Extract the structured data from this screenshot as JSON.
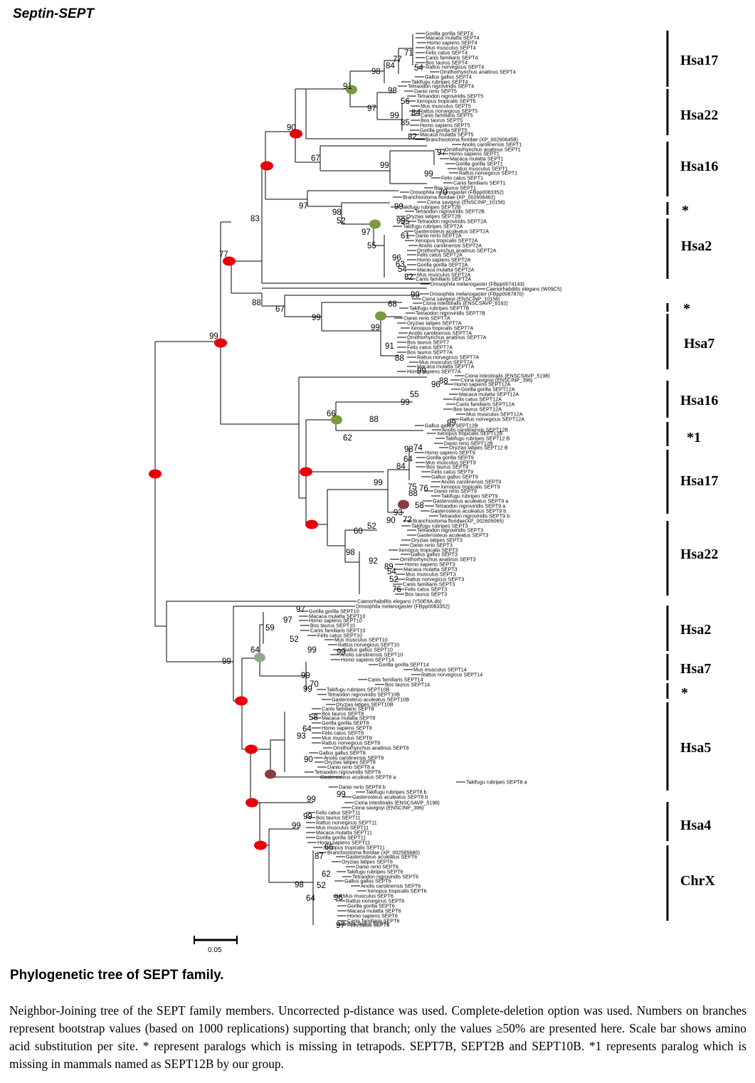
{
  "figure_title": "Septin-SEPT",
  "caption": {
    "heading": "Phylogenetic tree of SEPT family.",
    "body": "Neighbor-Joining tree of the SEPT family members. Uncorrected p-distance was used. Complete-deletion option was used. Numbers on branches represent bootstrap values (based on 1000 replications) supporting that branch; only the values ≥50% are presented here. Scale bar shows amino acid substitution per site. * represent paralogs which is missing in tetrapods. SEPT7B, SEPT2B and SEPT10B. *1 represents paralog which is missing in mammals named as SEPT12B by our group."
  },
  "scale_bar": {
    "label": "0.05"
  },
  "clades": [
    {
      "label": "Hsa17"
    },
    {
      "label": "Hsa22"
    },
    {
      "label": "Hsa16"
    },
    {
      "label": "*"
    },
    {
      "label": "Hsa2"
    },
    {
      "label": "*"
    },
    {
      "label": "Hsa7"
    },
    {
      "label": "Hsa16"
    },
    {
      "label": "*1"
    },
    {
      "label": "Hsa17"
    },
    {
      "label": "Hsa22"
    },
    {
      "label": "Hsa2"
    },
    {
      "label": "Hsa7"
    },
    {
      "label": "*"
    },
    {
      "label": "Hsa5"
    },
    {
      "label": "Hsa4"
    },
    {
      "label": "ChrX"
    }
  ],
  "taxa": [
    "Gorilla gorilla SEPT4",
    "Macaca mulatta SEPT4",
    "Homo sapiens SEPT4",
    "Mus musculus SEPT4",
    "Felis catus SEPT4",
    "Canis familiaris SEPT4",
    "Bos taurus SEPT4",
    "Rattus norvegicus SEPT4",
    "Ornithorhynchus anatinus SEPT4",
    "Gallus gallus SEPT4",
    "Takifugu rubripes SEPT4",
    "Tetraodon nigroviridis SEPT4",
    "Danio rerio SEPT5",
    "Tetraodon nigroviridis SEPT5",
    "Xenopus tropicalis SEPT5",
    "Mus musculus SEPT5",
    "Rattus norvegicus SEPT5",
    "Canis familiaris SEPT5",
    "Bos taurus SEPT5",
    "Homo sapiens SEPT5",
    "Gorilla gorilla SEPT5",
    "Macaca mulatta SEPT5",
    "Branchiostoma floridae (XP_002606458)",
    "Anolis carolinensis SEPT1",
    "Ornithorhynchus anatinus SEPT1",
    "Homo sapiens SEPT1",
    "Macaca mulatta SEPT1",
    "Gorilla gorilla SEPT1",
    "Mus musculus SEPT1",
    "Rattus norvegicus SEPT1",
    "Felis catus SEPT1",
    "Canis familiaris SEPT1",
    "Bos taurus SEPT1",
    "Drosophila melanogaster (FBpp0083352)",
    "Branchiostoma floridae (XP_002606462)",
    "Ciona savignyi (ENSCINP_10156)",
    "Takifugu rubripes SEPT2B",
    "Tetraodon nigroviridis SEPT2B",
    "Oryzias latipes SEPT2B",
    "Tetraodon nigroviridis SEPT2A",
    "Takifugu rubripes SEPT2A",
    "Gasterosteus aculeatus SEPT2A",
    "Danio rerio SEPT2A",
    "Xenopus tropicalis SEPT2A",
    "Anolis carolinensis SEPT2A",
    "Ornithorhynchus anatinus SEPT2A",
    "Felis catus SEPT2A",
    "Homo sapiens SEPT2A",
    "Gorilla gorilla SEPT2A",
    "Macaca mulatta SEPT2A",
    "Mus musculus SEPT2A",
    "Canis familiaris SEPT2A",
    "Drosophila melanogaster (FBpp0074143)",
    "Caenorhabditis elegans (W09C5)",
    "Drosophila melanogaster (FBpp0087870)",
    "Ciona savignyi (ENSCINP_10156)",
    "Ciona intestinalis (ENSCSAVP_6182)",
    "Takifugu rubripes SEPT7B",
    "Tetraodon nigroviridis SEPT7B",
    "Danio rerio SEPT7A",
    "Oryzias latipes SEPT7A",
    "Xenopus tropicalis SEPT7A",
    "Anolis carolinensis SEPT7A",
    "Ornithorhynchus anatinus SEPT7A",
    "Bos taurus SEPT7",
    "Felis catus SEPT7A",
    "Bos taurus SEPT7A",
    "Rattus norvegicus SEPT7A",
    "Mus musculus SEPT7A",
    "Macaca mulatta SEPT7A",
    "Homo sapiens SEPT7A",
    "Ciona intestinalis (ENSCSAVP_5198)",
    "Ciona savignyi (ENSCINP_396)",
    "Homo sapiens SEPT12A",
    "Gorilla gorilla SEPT12A",
    "Macaca mulatta SEPT12A",
    "Felis catus SEPT12A",
    "Canis familiaris SEPT12A",
    "Bos taurus SEPT12A",
    "Mus musculus SEPT12A",
    "Rattus norvegicus SEPT12A",
    "Gallus gallus SEPT12B",
    "Anolis carolinensis SEPT12B",
    "Xenopus tropicalis SEPT12B",
    "Takifugu rubripes SEPT12 B",
    "Danio rerio SEPT12B",
    "Oryzias latipes SEPT12 B",
    "Homo sapiens SEPT9",
    "Gorilla gorilla SEPT9",
    "Mus musculus SEPT9",
    "Bos taurus SEPT9",
    "Felis catus SEPT9",
    "Gallus gallus SEPT9",
    "Anolis carolinensis SEPT9",
    "Xenopus tropicalis SEPT9",
    "Danio rerio SEPT9",
    "Takifugu rubripes SEPT9",
    "Gasterosteus aculeatus SEPT9 a",
    "Tetraodon nigroviridis SEPT9 a",
    "Gasterosteus aculeatus SEPT9 b",
    "Tetraodon nigroviridis SEPT9 b",
    "Branchiostoma floridae(XP_002605065)",
    "Takifugu rubripes SEPT3",
    "Tetraodon nigroviridis SEPT3",
    "Gasterosteus aculeatus SEPT3",
    "Oryzias latipes SEPT3",
    "Danio rerio SEPT3",
    "Xenopus tropicalis SEPT3",
    "Gallus gallus SEPT3",
    "Ornithorhynchus anatinus SEPT3",
    "Homo sapiens SEPT3",
    "Macaca mulatta SEPT3",
    "Mus musculus SEPT3",
    "Rattus norvegicus SEPT3",
    "Canis familiaris SEPT3",
    "Felis catus SEPT3",
    "Bos taurus SEPT3",
    "Caenorhabditis elegans (Y50E8A.4b)",
    "Drosophila melanogaster (FBpp0083352)",
    "Gorilla gorilla SEPT10",
    "Macaca mulatta SEPT10",
    "Homo sapiens SEPT10",
    "Bos taurus SEPT10",
    "Canis familiaris SEPT10",
    "Felis catus SEPT10",
    "Mus musculus SEPT10",
    "Rattus norvegicus SEPT10",
    "Gallus gallus SEPT10",
    "Anolis carolinensis SEPT10",
    "Homo sapiens SEPT14",
    "Gorilla gorilla SEPT14",
    "Mus musculus SEPT14",
    "Rattus norvegicus SEPT14",
    "Canis familiaris SEPT14",
    "Bos taurus SEPT14",
    "Takifugu rubripes SEPT10B",
    "Tetraodon nigroviridis SEPT10B",
    "Gasterosteus aculeatus SEPT10B",
    "Oryzias latipes SEPT10B",
    "Canis familiaris SEPT8",
    "Bos taurus SEPT8",
    "Macaca mulatta SEPT8",
    "Gorilla gorilla SEPT8",
    "Homo sapiens SEPT8",
    "Felis catus SEPT8",
    "Mus musculus SEPT8",
    "Rattus norvegicus SEPT8",
    "Ornithorhynchus anatinus SEPT8",
    "Gallus gallus SEPT8",
    "Anolis carolinensis SEPT8",
    "Oryzias latipes SEPT8",
    "Danio rerio SEPT8 a",
    "Tetraodon nigroviridis SEPT8",
    "Gasterosteus aculeatus SEPT8 a",
    "Takifugu rubripes SEPT8 a",
    "Danio rerio SEPT8 b",
    "Takifugu rubripes SEPT8 b",
    "Gasterosteus aculeatus SEPT8 b",
    "Ciona intestinalis (ENSCSAVP_5198)",
    "Ciona savignyi (ENSCINP_396)",
    "Felis catus SEPT11",
    "Bos taurus SEPT11",
    "Rattus norvegicus SEPT11",
    "Mus musculus SEPT11",
    "Macaca mulatta SEPT11",
    "Gorilla gorilla SEPT11",
    "Homo sapiens SEPT11",
    "Xenopus tropicalis SEPT11",
    "Branchiostoma floridae (XP_002585680)",
    "Gasterosteus aculeatus SEPT6",
    "Oryzias latipes SEPT6",
    "Danio rerio SEPT6",
    "Takifugu rubripes SEPT6",
    "Tetraodon nigroviridis SEPT6",
    "Gallus gallus SEPT6",
    "Anolis carolinensis SEPT6",
    "Xenopus tropicalis SEPT6",
    "Mus musculus SEPT6",
    "Rattus norvegicus SEPT6",
    "Gorilla gorilla SEPT6",
    "Macaca mulatta SEPT6",
    "Homo sapiens SEPT6",
    "Canis familiaris SEPT6",
    "Felis catus SEPT6",
    "Bos taurus SEPT6"
  ],
  "bootstrap": [
    "71",
    "77",
    "84",
    "54",
    "98",
    "91",
    "98",
    "56",
    "97",
    "84",
    "99",
    "85",
    "82",
    "90",
    "67",
    "97",
    "99",
    "99",
    "70",
    "97",
    "98",
    "52",
    "99",
    "55",
    "99",
    "97",
    "61",
    "55",
    "96",
    "63",
    "54",
    "82",
    "83",
    "77",
    "99",
    "88",
    "67",
    "68",
    "99",
    "99",
    "91",
    "88",
    "99",
    "99",
    "88",
    "96",
    "55",
    "99",
    "66",
    "88",
    "99",
    "62",
    "98",
    "74",
    "64",
    "84",
    "99",
    "75",
    "76",
    "88",
    "58",
    "93",
    "90",
    "72",
    "52",
    "60",
    "98",
    "92",
    "89",
    "54",
    "52",
    "76",
    "97",
    "97",
    "59",
    "52",
    "99",
    "64",
    "99",
    "99",
    "99",
    "70",
    "99",
    "58",
    "64",
    "93",
    "90",
    "99",
    "99",
    "99",
    "99",
    "66",
    "87",
    "62",
    "98",
    "52",
    "64",
    "96",
    "97"
  ],
  "node_colors": {
    "red": "#e8000b",
    "green": "#7a9a3c",
    "gray_green": "#8faa8a",
    "maroon": "#8b3a3e"
  }
}
